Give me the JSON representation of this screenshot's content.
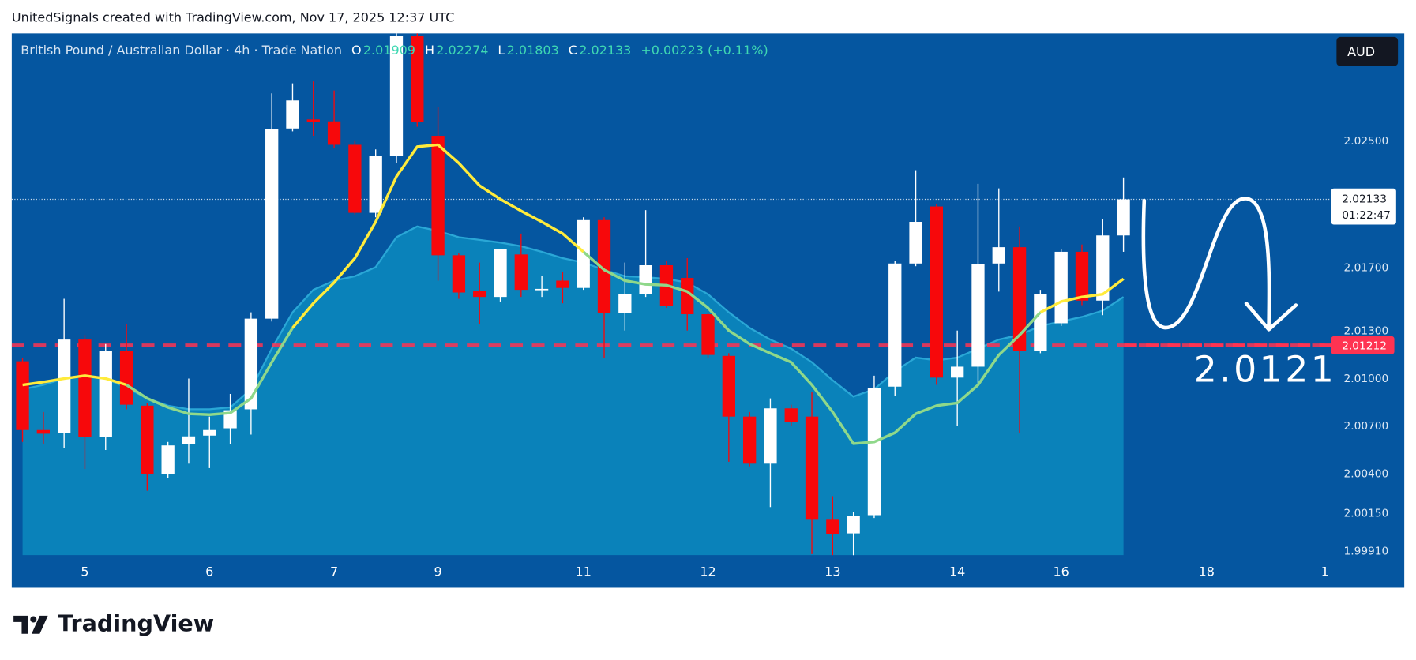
{
  "watermark": "UnitedSignals created with TradingView.com, Nov 17, 2025 12:37 UTC",
  "brand": "TradingView",
  "chart_data": {
    "type": "candlestick",
    "title": "British Pound / Australian Dollar · 4h · Trade Nation",
    "ohlc": [
      {
        "label": "O",
        "value": 2.01909
      },
      {
        "label": "H",
        "value": 2.02274
      },
      {
        "label": "L",
        "value": 2.01803
      },
      {
        "label": "C",
        "value": 2.02133
      }
    ],
    "change": "+0.00223 (+0.11%)",
    "currency": "AUD",
    "x": [
      0,
      1,
      2,
      3,
      4,
      5,
      6,
      7,
      8,
      9,
      10,
      11,
      12,
      13,
      14,
      15,
      16,
      17,
      18,
      19,
      20,
      21,
      22,
      23,
      24,
      25,
      26,
      27,
      28,
      29,
      30,
      31,
      32,
      33,
      34,
      35,
      36,
      37,
      38,
      39,
      40,
      41,
      42,
      43,
      44,
      45,
      46,
      47,
      48,
      49,
      50,
      51,
      52,
      53
    ],
    "open": [
      2.01111,
      2.00677,
      2.0066,
      2.01248,
      2.00631,
      2.01174,
      2.00831,
      2.00397,
      2.00591,
      2.00642,
      2.00688,
      2.00808,
      2.0138,
      2.0258,
      2.02637,
      2.02625,
      2.02477,
      2.02048,
      2.02408,
      2.03162,
      2.02534,
      2.0178,
      2.01557,
      2.01517,
      2.01785,
      2.01562,
      2.0162,
      2.01574,
      2.02002,
      2.01414,
      2.01534,
      2.01717,
      2.01637,
      2.01408,
      2.01145,
      2.00762,
      2.00465,
      2.00814,
      2.00762,
      2.00111,
      2.00025,
      2.0014,
      2.00951,
      2.01728,
      2.02088,
      2.01008,
      2.01077,
      2.01728,
      2.01831,
      2.01174,
      2.01351,
      2.01802,
      2.01494,
      2.01905
    ],
    "high": [
      2.01134,
      2.00791,
      2.01505,
      2.01277,
      2.0122,
      2.01345,
      2.00848,
      2.00602,
      2.01002,
      2.00762,
      2.00905,
      2.0142,
      2.02802,
      2.02865,
      2.02877,
      2.0282,
      2.02505,
      2.02448,
      2.0322,
      2.0322,
      2.02717,
      2.01791,
      2.01734,
      2.0182,
      2.01917,
      2.01648,
      2.01677,
      2.0202,
      2.0202,
      2.01734,
      2.02065,
      2.01745,
      2.01762,
      2.0142,
      2.01162,
      2.00791,
      2.00877,
      2.00837,
      2.00917,
      2.0026,
      2.00162,
      2.0102,
      2.01745,
      2.02317,
      2.02105,
      2.01305,
      2.02231,
      2.02202,
      2.01962,
      2.01562,
      2.0182,
      2.01848,
      2.02008,
      2.02271
    ],
    "low": [
      2.00602,
      2.00591,
      2.00562,
      2.00431,
      2.00551,
      2.00808,
      2.00294,
      2.00374,
      2.00465,
      2.00437,
      2.00591,
      2.00648,
      2.01362,
      2.02562,
      2.02534,
      2.02454,
      2.02037,
      2.0202,
      2.02362,
      2.02591,
      2.0162,
      2.01505,
      2.01345,
      2.01488,
      2.01517,
      2.01517,
      2.01477,
      2.01562,
      2.01134,
      2.01305,
      2.01517,
      2.01448,
      2.01305,
      2.01134,
      2.00477,
      2.00448,
      2.00191,
      2.00705,
      1.99894,
      1.99877,
      1.99877,
      2.00122,
      2.00894,
      2.01711,
      2.00962,
      2.00705,
      2.00962,
      2.01551,
      2.0066,
      2.01162,
      2.01334,
      2.01465,
      2.01402,
      2.01802
    ],
    "close": [
      2.00677,
      2.00654,
      2.01248,
      2.00631,
      2.01174,
      2.00837,
      2.00397,
      2.0058,
      2.00637,
      2.00677,
      2.00802,
      2.0138,
      2.02574,
      2.02757,
      2.0262,
      2.02477,
      2.02048,
      2.02408,
      2.03162,
      2.0262,
      2.0178,
      2.01545,
      2.01517,
      2.0182,
      2.01562,
      2.01568,
      2.01574,
      2.02002,
      2.01414,
      2.01534,
      2.01717,
      2.0146,
      2.01408,
      2.01151,
      2.00762,
      2.00465,
      2.00814,
      2.00728,
      2.00111,
      2.0002,
      2.00134,
      2.0094,
      2.01728,
      2.01991,
      2.01008,
      2.01077,
      2.01722,
      2.01831,
      2.01174,
      2.01534,
      2.01802,
      2.01494,
      2.01905,
      2.02133
    ],
    "up_color": "#ffffff",
    "down_color": "#f7080b",
    "area": {
      "color": "#0b87bd",
      "values": [
        2.00934,
        2.00962,
        2.01002,
        2.0102,
        2.01002,
        2.00945,
        2.00877,
        2.00831,
        2.00808,
        2.00808,
        2.0082,
        2.00934,
        2.01191,
        2.0142,
        2.01562,
        2.0162,
        2.01648,
        2.01705,
        2.01894,
        2.01962,
        2.01934,
        2.01894,
        2.01877,
        2.0186,
        2.01837,
        2.01802,
        2.01762,
        2.01734,
        2.01688,
        2.01648,
        2.01642,
        2.01631,
        2.01608,
        2.01534,
        2.0142,
        2.01322,
        2.01248,
        2.01191,
        2.01105,
        2.00991,
        2.00888,
        2.00934,
        2.01048,
        2.01134,
        2.01117,
        2.01134,
        2.01191,
        2.01248,
        2.01277,
        2.01334,
        2.01362,
        2.01391,
        2.01431,
        2.01517
      ]
    },
    "series": [
      {
        "color": "#ffeb3b",
        "values": [
          2.00962,
          2.0098,
          2.01002,
          2.0102,
          2.01002,
          2.00962,
          null,
          null,
          null,
          null,
          null,
          null,
          null,
          2.01322,
          2.01477,
          2.01608,
          2.01762,
          2.01991,
          2.02277,
          2.02465,
          2.02477,
          2.02362,
          2.0222,
          2.02134,
          2.0206,
          2.01991,
          2.01917,
          2.01802,
          null,
          null,
          null,
          null,
          null,
          null,
          null,
          null,
          null,
          null,
          null,
          null,
          null,
          null,
          null,
          null,
          null,
          null,
          null,
          null,
          null,
          2.0142,
          2.01488,
          2.01517,
          2.01534,
          2.01631
        ]
      },
      {
        "color": "#8fd88a",
        "values": [
          null,
          null,
          null,
          null,
          null,
          2.00962,
          2.00877,
          2.0082,
          2.0078,
          2.00774,
          2.00785,
          2.00877,
          2.01105,
          2.01322,
          null,
          null,
          null,
          null,
          null,
          null,
          null,
          null,
          null,
          null,
          null,
          null,
          null,
          2.01802,
          2.01688,
          2.0162,
          2.01597,
          2.01591,
          2.01551,
          2.01448,
          2.01305,
          2.0122,
          2.01162,
          2.01105,
          2.00962,
          2.00791,
          2.00591,
          2.00602,
          2.0066,
          2.0078,
          2.00831,
          2.00848,
          2.00962,
          2.01151,
          2.01277,
          2.0142,
          null,
          null,
          null,
          null
        ]
      }
    ],
    "xlim": [
      -0.52,
      63.17
    ],
    "xticks": [
      {
        "value": 3,
        "label": "5"
      },
      {
        "value": 9,
        "label": "6"
      },
      {
        "value": 15,
        "label": "7"
      },
      {
        "value": 20,
        "label": "9"
      },
      {
        "value": 27,
        "label": "11"
      },
      {
        "value": 33,
        "label": "12"
      },
      {
        "value": 39,
        "label": "13"
      },
      {
        "value": 45,
        "label": "14"
      },
      {
        "value": 50,
        "label": "16"
      },
      {
        "value": 57,
        "label": "18"
      },
      {
        "value": 62.7,
        "label": "1"
      }
    ],
    "ylim": [
      1.99887,
      2.0318
    ],
    "yticks": [
      {
        "value": 2.025,
        "label": "2.02500"
      },
      {
        "value": 2.017,
        "label": "2.01700"
      },
      {
        "value": 2.013,
        "label": "2.01300"
      },
      {
        "value": 2.01,
        "label": "2.01000"
      },
      {
        "value": 2.007,
        "label": "2.00700"
      },
      {
        "value": 2.004,
        "label": "2.00400"
      },
      {
        "value": 2.0015,
        "label": "2.00150"
      },
      {
        "value": 1.9991,
        "label": "1.99910"
      }
    ],
    "grid": false,
    "level": {
      "value": 2.01212,
      "color": "#ff3352"
    },
    "last_price": {
      "value": 2.02133,
      "countdown": "01:22:47"
    },
    "annotation": "2.0121"
  }
}
